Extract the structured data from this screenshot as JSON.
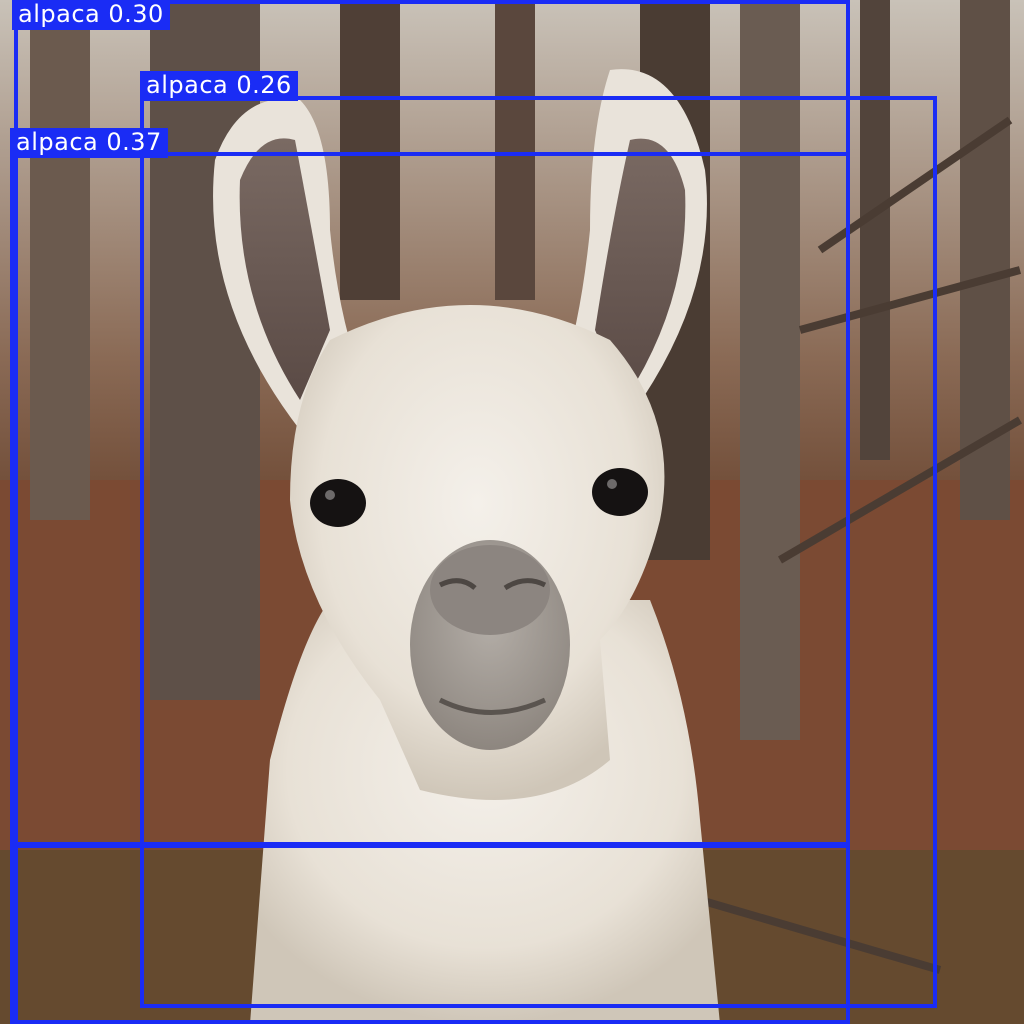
{
  "image": {
    "description_name": "llama-in-autumn-forest",
    "box_color": "#1a2cf5",
    "label_text_color": "#ffffff"
  },
  "detections": [
    {
      "class_name": "alpaca",
      "score": "0.30",
      "label": "alpaca 0.30"
    },
    {
      "class_name": "alpaca",
      "score": "0.26",
      "label": "alpaca 0.26"
    },
    {
      "class_name": "alpaca",
      "score": "0.37",
      "label": "alpaca 0.37"
    }
  ]
}
